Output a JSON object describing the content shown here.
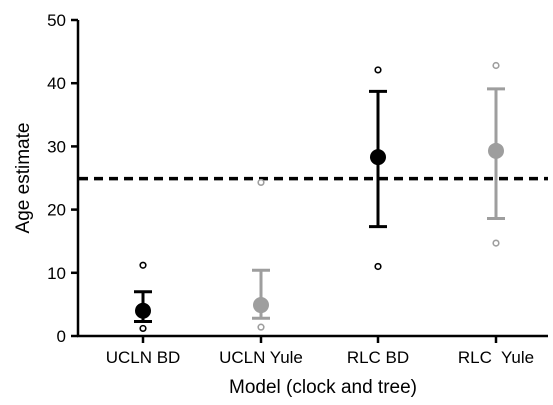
{
  "chart_data": {
    "type": "scatter",
    "title": "",
    "xlabel": "Model (clock and tree)",
    "ylabel": "Age estimate",
    "ylim": [
      0,
      50
    ],
    "yticks": [
      0,
      10,
      20,
      30,
      40,
      50
    ],
    "grid": false,
    "legend": "none",
    "categories": [
      "UCLN BD",
      "UCLN Yule",
      "RLC BD",
      "RLC  Yule"
    ],
    "points": [
      {
        "category": "UCLN BD",
        "mean": 4.0,
        "lower": 2.3,
        "upper": 7.0,
        "min": 1.2,
        "max": 11.2,
        "color": "#000000"
      },
      {
        "category": "UCLN Yule",
        "mean": 4.9,
        "lower": 2.8,
        "upper": 10.4,
        "min": 1.4,
        "max": 24.3,
        "color": "#9e9e9e"
      },
      {
        "category": "RLC BD",
        "mean": 28.3,
        "lower": 17.3,
        "upper": 38.7,
        "min": 11.0,
        "max": 42.1,
        "color": "#000000"
      },
      {
        "category": "RLC  Yule",
        "mean": 29.3,
        "lower": 18.6,
        "upper": 39.1,
        "min": 14.7,
        "max": 42.8,
        "color": "#9e9e9e"
      }
    ],
    "reference_line": {
      "value": 24.9,
      "style": "dashed",
      "color": "#000000"
    }
  }
}
